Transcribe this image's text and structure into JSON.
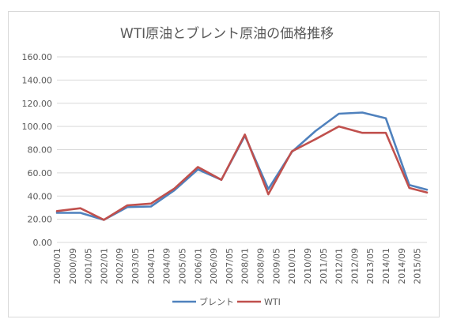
{
  "chart_data": {
    "type": "line",
    "title": "WTI原油とブレント原油の価格推移",
    "xlabel": "",
    "ylabel": "",
    "ylim": [
      0,
      160
    ],
    "y_ticks": [
      "0.00",
      "20.00",
      "40.00",
      "60.00",
      "80.00",
      "100.00",
      "120.00",
      "140.00",
      "160.00"
    ],
    "grid": true,
    "legend_position": "bottom",
    "categories": [
      "2000/01",
      "2000/09",
      "2001/05",
      "2002/01",
      "2002/09",
      "2003/05",
      "2004/01",
      "2004/09",
      "2005/05",
      "2006/01",
      "2006/09",
      "2007/05",
      "2008/01",
      "2008/09",
      "2009/05",
      "2010/01",
      "2010/09",
      "2011/05",
      "2012/01",
      "2012/09",
      "2013/05",
      "2014/01",
      "2014/09",
      "2015/05"
    ],
    "x_positions": [
      0,
      8,
      16,
      24,
      32,
      40,
      48,
      56,
      64,
      72,
      80,
      88,
      96,
      104,
      112,
      120,
      128,
      136,
      144,
      152,
      160,
      168,
      176,
      184
    ],
    "series": [
      {
        "name": "ブレント",
        "color": "#4f81bd",
        "x": [
          0,
          12,
          24,
          36,
          48,
          60,
          72,
          84,
          96,
          108,
          120,
          132,
          144,
          156,
          168,
          180,
          189
        ],
        "values": [
          25.5,
          25.5,
          19.5,
          30.5,
          31,
          45,
          63,
          54,
          92,
          46,
          78,
          96,
          111,
          112,
          107,
          49.5,
          45.5
        ]
      },
      {
        "name": "WTI",
        "color": "#c0504d",
        "x": [
          0,
          12,
          24,
          36,
          48,
          60,
          72,
          84,
          96,
          108,
          120,
          132,
          144,
          156,
          168,
          180,
          189
        ],
        "values": [
          27,
          29.5,
          19.5,
          32,
          33.5,
          46.5,
          65,
          54,
          93,
          41.5,
          78.5,
          89,
          100,
          94.5,
          94.5,
          47,
          43
        ]
      }
    ]
  }
}
